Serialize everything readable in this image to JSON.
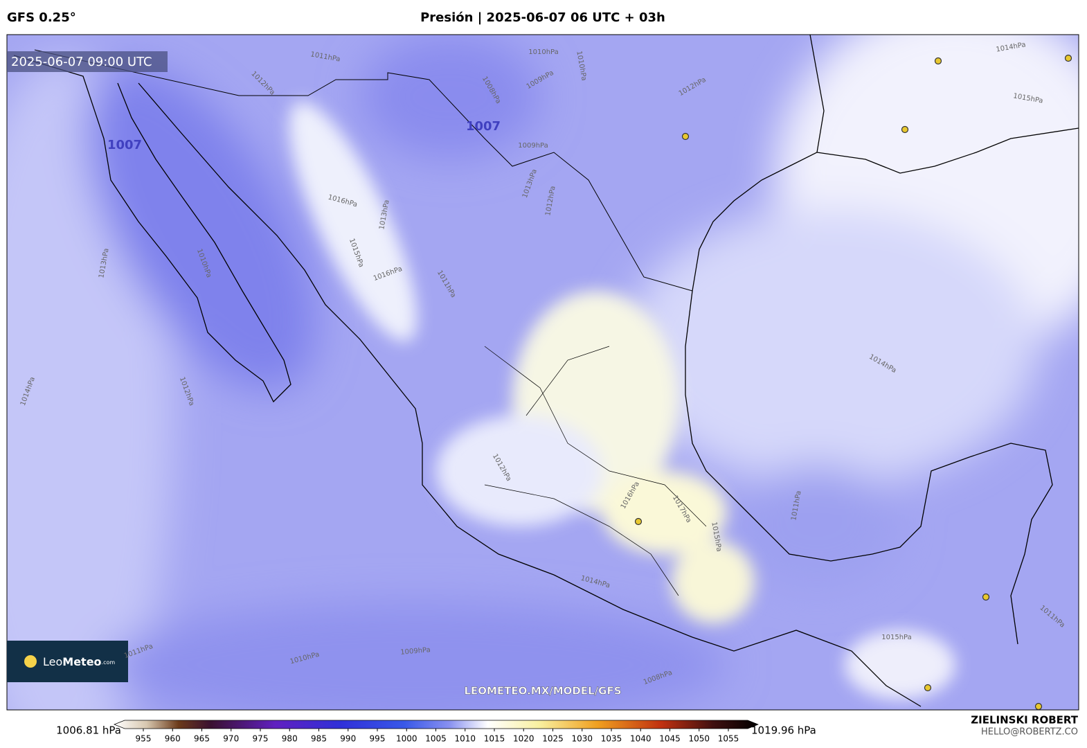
{
  "header": {
    "model": "GFS 0.25°",
    "title": "Presión | 2025-06-07 06 UTC + 03h"
  },
  "map": {
    "timestamp": "2025-06-07 09:00 UTC",
    "lows": [
      "1007",
      "1007"
    ],
    "isobar_labels": [
      "1012hPa",
      "1011hPa",
      "1010hPa",
      "1010hPa",
      "1008hPa",
      "1009hPa",
      "1012hPa",
      "1014hPa",
      "1015hPa",
      "1009hPa",
      "1013hPa",
      "1012hPa",
      "1016hPa",
      "1015hPa",
      "1013hPa",
      "1016hPa",
      "1011hPa",
      "1013hPa",
      "1010hPa",
      "1014hPa",
      "1012hPa",
      "1014hPa",
      "1011hPa",
      "1014hPa",
      "1011hPa",
      "1010hPa",
      "1009hPa",
      "1008hPa",
      "1011hPa",
      "1015hPa",
      "1012hPa",
      "1016hPa",
      "1017hPa",
      "1015hPa"
    ],
    "watermark": "LEOMETEO.MX/MODEL/GFS",
    "logo": [
      "Leo",
      "Meteo",
      ".com"
    ]
  },
  "colorbar": {
    "min_label": "1006.81 hPa",
    "max_label": "1019.96 hPa",
    "ticks": [
      955,
      960,
      965,
      970,
      975,
      980,
      985,
      990,
      995,
      1000,
      1005,
      1010,
      1015,
      1020,
      1025,
      1030,
      1035,
      1040,
      1045,
      1050,
      1055
    ]
  },
  "credit": {
    "name": "ZIELINSKI ROBERT",
    "email": "HELLO@ROBERTZ.CO"
  }
}
